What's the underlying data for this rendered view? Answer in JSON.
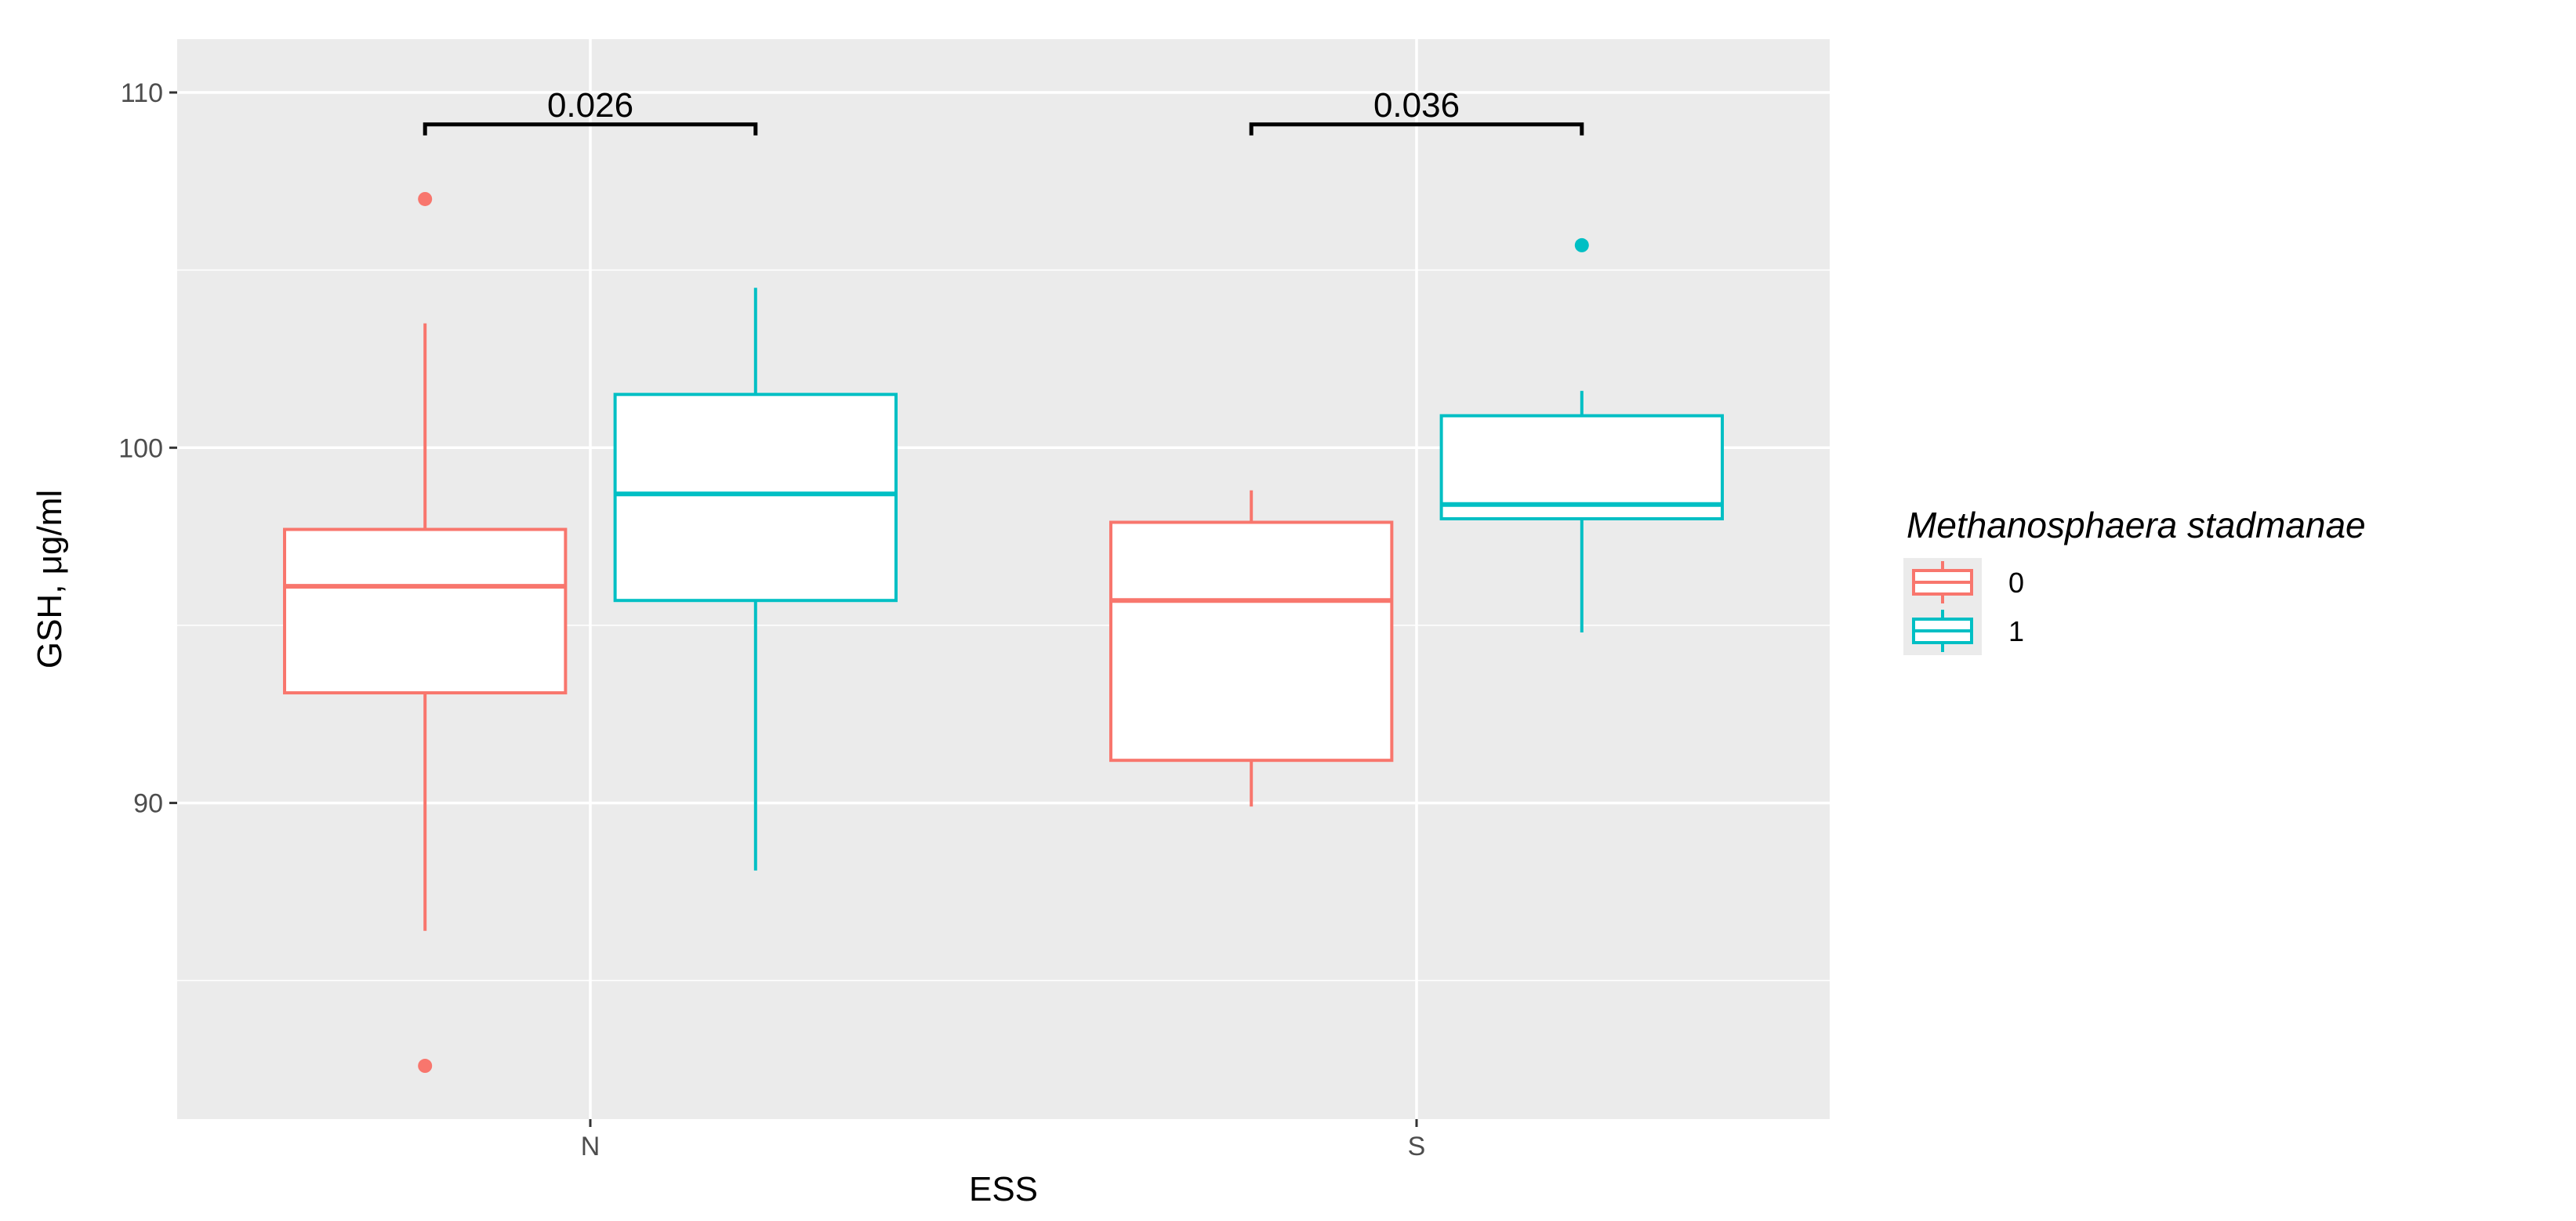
{
  "chart_data": {
    "type": "boxplot",
    "xlabel": "ESS",
    "ylabel": "GSH, μg/ml",
    "categories": [
      "N",
      "S"
    ],
    "ylim": [
      81.1,
      111.5
    ],
    "yticks": [
      90,
      100,
      110
    ],
    "grid": true,
    "legend": {
      "title": "Methanosphaera stadmanae",
      "placement": "right",
      "entries": [
        {
          "label": "0",
          "color": "#F8766D"
        },
        {
          "label": "1",
          "color": "#00BFC4"
        }
      ]
    },
    "series": [
      {
        "name": "0",
        "color": "#F8766D",
        "boxes": [
          {
            "category": "N",
            "whisker_low": 86.4,
            "q1": 93.1,
            "median": 96.1,
            "q3": 97.7,
            "whisker_high": 103.5,
            "outliers": [
              107.0,
              82.6
            ]
          },
          {
            "category": "S",
            "whisker_low": 89.9,
            "q1": 91.2,
            "median": 95.7,
            "q3": 97.9,
            "whisker_high": 98.8,
            "outliers": []
          }
        ]
      },
      {
        "name": "1",
        "color": "#00BFC4",
        "boxes": [
          {
            "category": "N",
            "whisker_low": 88.1,
            "q1": 95.7,
            "median": 98.7,
            "q3": 101.5,
            "whisker_high": 104.5,
            "outliers": []
          },
          {
            "category": "S",
            "whisker_low": 94.8,
            "q1": 98.0,
            "median": 98.4,
            "q3": 100.9,
            "whisker_high": 101.6,
            "outliers": [
              105.7
            ]
          }
        ]
      }
    ],
    "annotations": [
      {
        "category": "N",
        "text": "0.026",
        "y": 109.1
      },
      {
        "category": "S",
        "text": "0.036",
        "y": 109.1
      }
    ]
  }
}
